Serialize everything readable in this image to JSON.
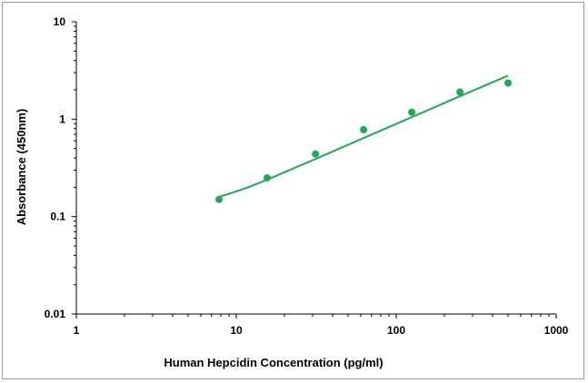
{
  "chart_data": {
    "type": "scatter",
    "xlabel": "Human Hepcidin Concentration (pg/ml)",
    "ylabel": "Absorbance (450nm)",
    "x_scale": "log",
    "y_scale": "log",
    "xlim": [
      1,
      1000
    ],
    "ylim": [
      0.01,
      10
    ],
    "x_ticks": [
      "1",
      "10",
      "100",
      "1000"
    ],
    "y_ticks": [
      "10",
      "1",
      "0.1",
      "0.01"
    ],
    "grid": false,
    "legend": "none",
    "series": [
      {
        "points": [
          {
            "x": 7.8,
            "y": 0.15
          },
          {
            "x": 15.6,
            "y": 0.25
          },
          {
            "x": 31.25,
            "y": 0.44
          },
          {
            "x": 62.5,
            "y": 0.78
          },
          {
            "x": 125,
            "y": 1.18
          },
          {
            "x": 250,
            "y": 1.9
          },
          {
            "x": 500,
            "y": 2.35
          }
        ],
        "fit": [
          {
            "x": 7.8,
            "y": 0.16
          },
          {
            "x": 15.6,
            "y": 0.24
          },
          {
            "x": 31.25,
            "y": 0.39
          },
          {
            "x": 62.5,
            "y": 0.64
          },
          {
            "x": 125,
            "y": 1.05
          },
          {
            "x": 250,
            "y": 1.72
          },
          {
            "x": 500,
            "y": 2.8
          }
        ]
      }
    ],
    "colors": {
      "series": "#1faa55",
      "axis": "#000000",
      "frame": "#9a9a9a"
    }
  }
}
